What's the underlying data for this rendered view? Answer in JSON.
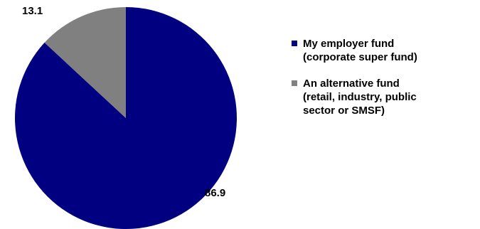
{
  "chart_data": {
    "type": "pie",
    "title": "",
    "legend_position": "right",
    "slices": [
      {
        "label": "My employer fund\n(corporate super fund)",
        "value": 86.9,
        "display": "86.9",
        "color": "#000080"
      },
      {
        "label": "An alternative fund\n(retail, industry, public\nsector or SMSF)",
        "value": 13.1,
        "display": "13.1",
        "color": "#808080"
      }
    ]
  }
}
